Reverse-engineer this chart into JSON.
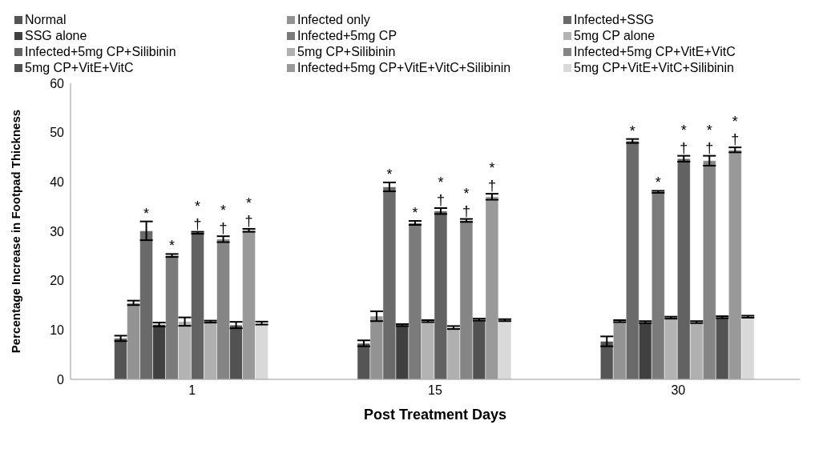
{
  "chart_data": {
    "type": "bar",
    "xlabel": "Post Treatment Days",
    "ylabel": "Percentage Increase in Footpad Thickness",
    "categories": [
      "1",
      "15",
      "30"
    ],
    "ylim": [
      0,
      60
    ],
    "yticks": [
      0,
      10,
      20,
      30,
      40,
      50,
      60
    ],
    "legend": "top",
    "series": [
      {
        "name": "Normal",
        "color": "#555555",
        "values": [
          8.3,
          7.3,
          7.7
        ],
        "errors": [
          0.55,
          0.6,
          1.0
        ],
        "value_labels": [
          null,
          null,
          null
        ]
      },
      {
        "name": "Infected only",
        "color": "#939393",
        "values": [
          15.5,
          12.8,
          11.8
        ],
        "errors": [
          0.45,
          1.0,
          0.2
        ],
        "value_labels": [
          null,
          null,
          null
        ]
      },
      {
        "name": "Infected+SSG",
        "color": "#6a6a6a",
        "values": [
          30.1,
          39.0,
          48.3
        ],
        "errors": [
          1.9,
          0.9,
          0.4
        ],
        "value_labels": [
          "*",
          "*",
          "*"
        ]
      },
      {
        "name": "SSG alone",
        "color": "#404040",
        "values": [
          11.1,
          11.0,
          11.6
        ],
        "errors": [
          0.4,
          0.2,
          0.2
        ],
        "value_labels": [
          null,
          null,
          null
        ]
      },
      {
        "name": "Infected+5mg CP",
        "color": "#7b7b7b",
        "values": [
          25.1,
          31.7,
          38.0
        ],
        "errors": [
          0.3,
          0.4,
          0.2
        ],
        "value_labels": [
          "*",
          "*",
          "*"
        ]
      },
      {
        "name": "5mg CP alone",
        "color": "#b3b3b3",
        "values": [
          11.7,
          11.8,
          12.5
        ],
        "errors": [
          0.85,
          0.2,
          0.2
        ],
        "value_labels": [
          null,
          null,
          null
        ]
      },
      {
        "name": "Infected+5mg CP+Silibinin",
        "color": "#626262",
        "values": [
          29.7,
          34.1,
          44.7
        ],
        "errors": [
          0.2,
          0.6,
          0.6
        ],
        "value_labels": [
          "*\n†",
          "*\n†",
          "*\n†"
        ]
      },
      {
        "name": "5mg CP+Silibinin",
        "color": "#b0b0b0",
        "values": [
          11.7,
          10.5,
          11.6
        ],
        "errors": [
          0.2,
          0.3,
          0.2
        ],
        "value_labels": [
          null,
          null,
          null
        ]
      },
      {
        "name": "Infected+5mg CP+VitE+VitC",
        "color": "#858585",
        "values": [
          28.4,
          32.2,
          44.3
        ],
        "errors": [
          0.6,
          0.3,
          1.0
        ],
        "value_labels": [
          "*\n†",
          "*\n†",
          "*\n†"
        ]
      },
      {
        "name": "5mg CP+VitE+VitC",
        "color": "#525252",
        "values": [
          11.0,
          12.1,
          12.6
        ],
        "errors": [
          0.65,
          0.2,
          0.2
        ],
        "value_labels": [
          null,
          null,
          null
        ]
      },
      {
        "name": "Infected+5mg CP+VitE+VitC+Silibinin",
        "color": "#999999",
        "values": [
          30.2,
          37.0,
          46.5
        ],
        "errors": [
          0.3,
          0.6,
          0.5
        ],
        "value_labels": [
          "*\n†",
          "*\n†",
          "*\n†"
        ]
      },
      {
        "name": "5mg CP+VitE+VitC+Silibinin",
        "color": "#d9d9d9",
        "values": [
          11.4,
          12.0,
          12.7
        ],
        "errors": [
          0.3,
          0.2,
          0.2
        ],
        "value_labels": [
          null,
          null,
          null
        ]
      }
    ]
  }
}
